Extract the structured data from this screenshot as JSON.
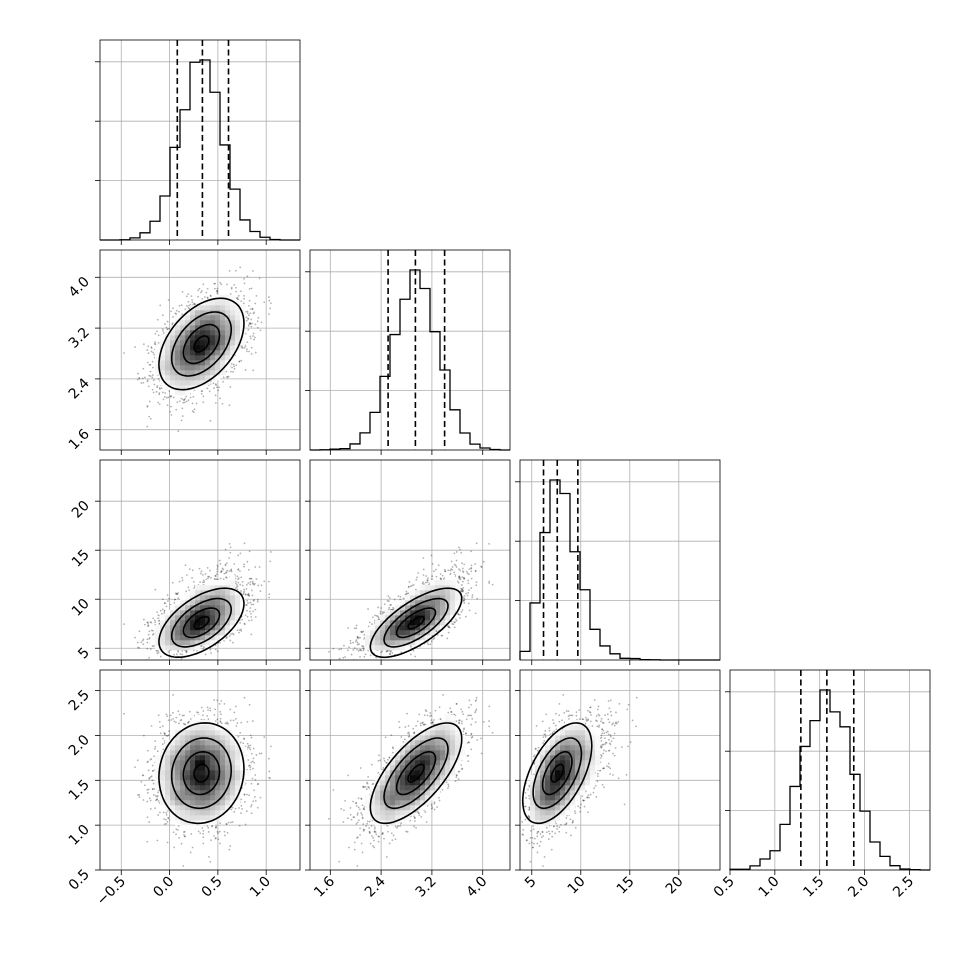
{
  "chart_data": {
    "type": "corner",
    "title": "",
    "parameters": [
      {
        "id": "p0",
        "label": "",
        "lim": [
          -0.72,
          1.35
        ],
        "ticks": [
          -0.5,
          0.0,
          0.5,
          1.0
        ],
        "tick_labels": [
          "−0.5",
          "0.0",
          "0.5",
          "1.0"
        ],
        "mean": 0.33,
        "sd": 0.22,
        "quantiles": [
          0.08,
          0.34,
          0.61
        ]
      },
      {
        "id": "p1",
        "label": "",
        "lim": [
          1.28,
          4.43
        ],
        "ticks": [
          1.6,
          2.4,
          3.2,
          4.0
        ],
        "tick_labels": [
          "1.6",
          "2.4",
          "3.2",
          "4.0"
        ],
        "mean": 2.95,
        "sd": 0.36,
        "quantiles": [
          2.51,
          2.94,
          3.4
        ]
      },
      {
        "id": "p2",
        "label": "",
        "lim": [
          3.8,
          24.2
        ],
        "ticks": [
          5,
          10,
          15,
          20
        ],
        "tick_labels": [
          "5",
          "10",
          "15",
          "20"
        ],
        "mean": 8.0,
        "sd": 1.7,
        "skew": true,
        "quantiles": [
          6.2,
          7.6,
          9.7
        ]
      },
      {
        "id": "p3",
        "label": "",
        "lim": [
          0.5,
          2.73
        ],
        "ticks": [
          0.5,
          1.0,
          1.5,
          2.0,
          2.5
        ],
        "tick_labels": [
          "0.5",
          "1.0",
          "1.5",
          "2.0",
          "2.5"
        ],
        "mean": 1.58,
        "sd": 0.28,
        "quantiles": [
          1.29,
          1.58,
          1.88
        ]
      }
    ],
    "correlations": {
      "1,0": 0.45,
      "2,0": 0.55,
      "3,0": 0.08,
      "2,1": 0.7,
      "3,1": 0.68,
      "3,2": 0.55
    },
    "grid": true,
    "quantile_lines": "dashed",
    "contour_levels": 4
  }
}
